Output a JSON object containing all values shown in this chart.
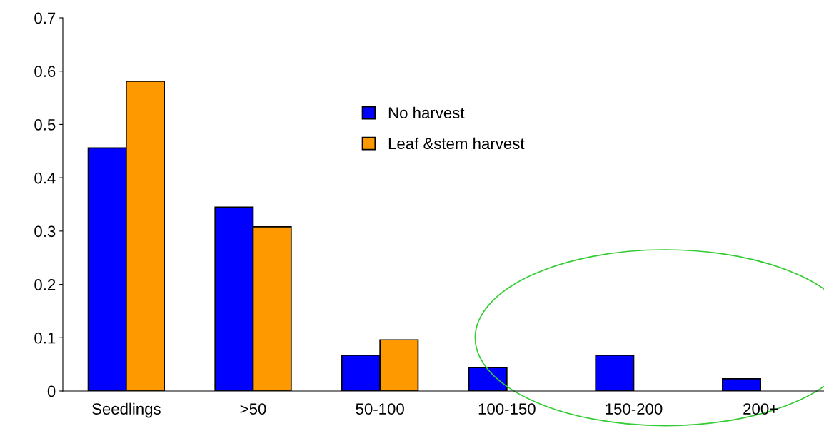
{
  "chart_data": {
    "type": "bar",
    "categories": [
      "Seedlings",
      ">50",
      "50-100",
      "100-150",
      "150-200",
      "200+"
    ],
    "series": [
      {
        "name": "No harvest",
        "color": "#0000ff",
        "values": [
          0.456,
          0.345,
          0.067,
          0.044,
          0.067,
          0.023
        ]
      },
      {
        "name": "Leaf &stem harvest",
        "color": "#ff9900",
        "values": [
          0.581,
          0.308,
          0.096,
          null,
          null,
          null
        ]
      }
    ],
    "ylim": [
      0,
      0.7
    ],
    "yticks": [
      {
        "value": 0,
        "label": "0"
      },
      0.1,
      0.2,
      0.3,
      0.4,
      0.5,
      0.6,
      0.7
    ],
    "grid": false,
    "legend": "top"
  }
}
